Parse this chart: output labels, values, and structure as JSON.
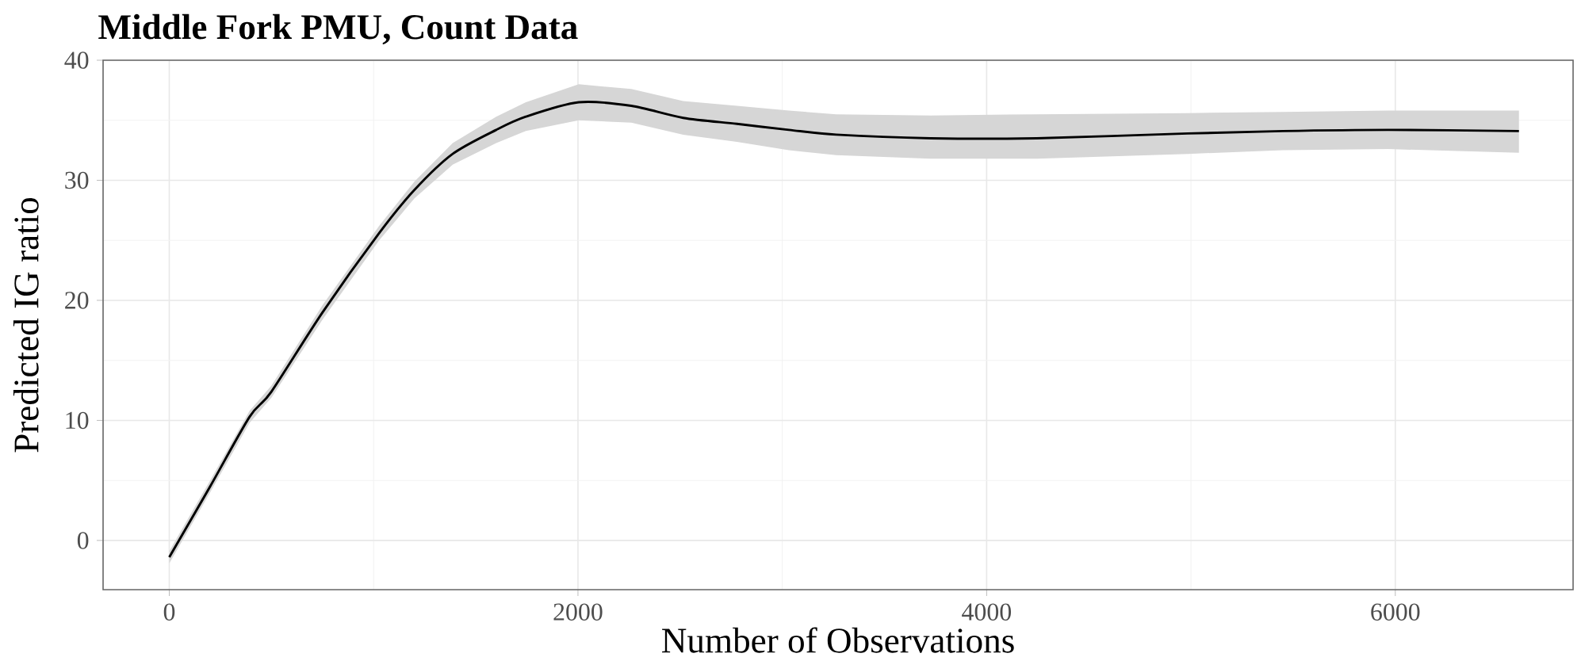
{
  "chart_data": {
    "type": "line",
    "title": "Middle Fork PMU, Count Data",
    "xlabel": "Number of Observations",
    "ylabel": "Predicted IG ratio",
    "series": [
      {
        "type": "line",
        "color": "#000000",
        "x": [
          0,
          200,
          393,
          500,
          750,
          1027,
          1200,
          1387,
          1600,
          1745,
          2004,
          2261,
          2515,
          2778,
          3032,
          3264,
          3727,
          4244,
          4985,
          5448,
          5965,
          6605
        ],
        "values": [
          -1.4,
          4.5,
          10.3,
          12.4,
          19.0,
          25.6,
          29.2,
          32.2,
          34.2,
          35.3,
          36.5,
          36.2,
          35.2,
          34.7,
          34.2,
          33.8,
          33.5,
          33.5,
          33.9,
          34.1,
          34.2,
          34.1
        ],
        "lower": [
          -1.9,
          4.0,
          9.8,
          11.9,
          18.4,
          25.0,
          28.5,
          31.3,
          33.1,
          34.1,
          35.0,
          34.8,
          33.8,
          33.2,
          32.5,
          32.1,
          31.8,
          31.8,
          32.2,
          32.5,
          32.6,
          32.3
        ],
        "upper": [
          -0.9,
          5.0,
          10.8,
          12.9,
          19.6,
          26.2,
          29.9,
          33.1,
          35.3,
          36.5,
          38.0,
          37.6,
          36.6,
          36.2,
          35.8,
          35.5,
          35.4,
          35.5,
          35.6,
          35.7,
          35.8,
          35.8
        ]
      }
    ],
    "xlim": [
      -324,
      6870
    ],
    "ylim": [
      -4.1,
      40
    ],
    "xticks": [
      0,
      2000,
      4000,
      6000
    ],
    "yticks": [
      0,
      10,
      20,
      30,
      40
    ],
    "grid": true
  }
}
